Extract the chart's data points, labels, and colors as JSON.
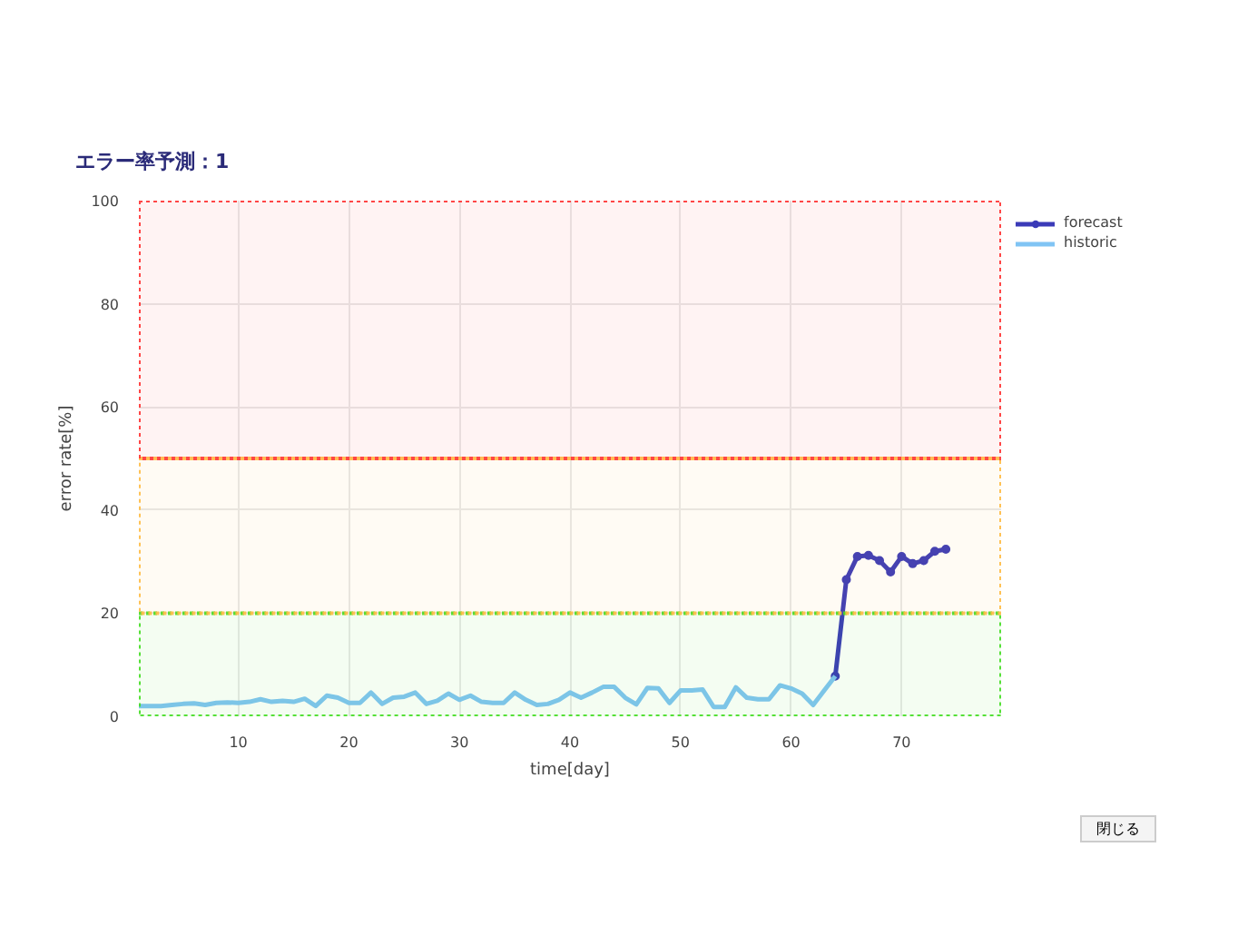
{
  "chart_data": {
    "type": "line",
    "title": "エラー率予測：1",
    "xlabel": "time[day]",
    "ylabel": "error rate[%]",
    "xlim": [
      1,
      79
    ],
    "xticks": [
      10,
      20,
      30,
      40,
      50,
      60,
      70
    ],
    "ylim": [
      0,
      100
    ],
    "yticks": [
      0,
      20,
      40,
      60,
      80,
      100
    ],
    "grid": true,
    "legend": "top right",
    "series": [
      {
        "name": "forecast",
        "color": "#3b3bb8",
        "marker": "circle",
        "x": [
          64,
          65,
          66,
          67,
          68,
          69,
          70,
          71,
          72,
          73,
          74
        ],
        "values": [
          7.8,
          26.5,
          31,
          31.2,
          30.2,
          28,
          31,
          29.6,
          30.2,
          32,
          32.4
        ]
      },
      {
        "name": "historic",
        "color": "#80c4f4",
        "marker": "none",
        "x": [
          1,
          2,
          3,
          4,
          5,
          6,
          7,
          8,
          9,
          10,
          11,
          12,
          13,
          14,
          15,
          16,
          17,
          18,
          19,
          20,
          21,
          22,
          23,
          24,
          25,
          26,
          27,
          28,
          29,
          30,
          31,
          32,
          33,
          34,
          35,
          36,
          37,
          38,
          39,
          40,
          41,
          42,
          43,
          44,
          45,
          46,
          47,
          48,
          49,
          50,
          51,
          52,
          53,
          54,
          55,
          56,
          57,
          58,
          59,
          60,
          61,
          62,
          63,
          64
        ],
        "values": [
          2,
          2,
          2,
          2.2,
          2.4,
          2.5,
          2.2,
          2.6,
          2.7,
          2.6,
          2.8,
          3.3,
          2.8,
          3,
          2.8,
          3.4,
          2,
          4,
          3.6,
          2.6,
          2.6,
          4.6,
          2.4,
          3.6,
          3.8,
          4.6,
          2.4,
          3,
          4.4,
          3.2,
          4,
          2.8,
          2.6,
          2.6,
          4.6,
          3.2,
          2.2,
          2.4,
          3.2,
          4.6,
          3.6,
          4.6,
          5.7,
          5.7,
          3.6,
          2.3,
          5.5,
          5.4,
          2.6,
          5,
          5,
          5.2,
          1.8,
          1.8,
          5.6,
          3.6,
          3.3,
          3.3,
          6,
          5.4,
          4.4,
          2.2,
          5,
          7.8
        ]
      }
    ],
    "bands": [
      {
        "axis": "y",
        "from": 0,
        "to": 20,
        "color": "#44dd22"
      },
      {
        "axis": "y",
        "from": 20,
        "to": 50,
        "color": "#ffbb44"
      },
      {
        "axis": "y",
        "from": 50,
        "to": 100,
        "color": "#ff3333"
      }
    ],
    "annotations": [
      "閉じる"
    ]
  }
}
